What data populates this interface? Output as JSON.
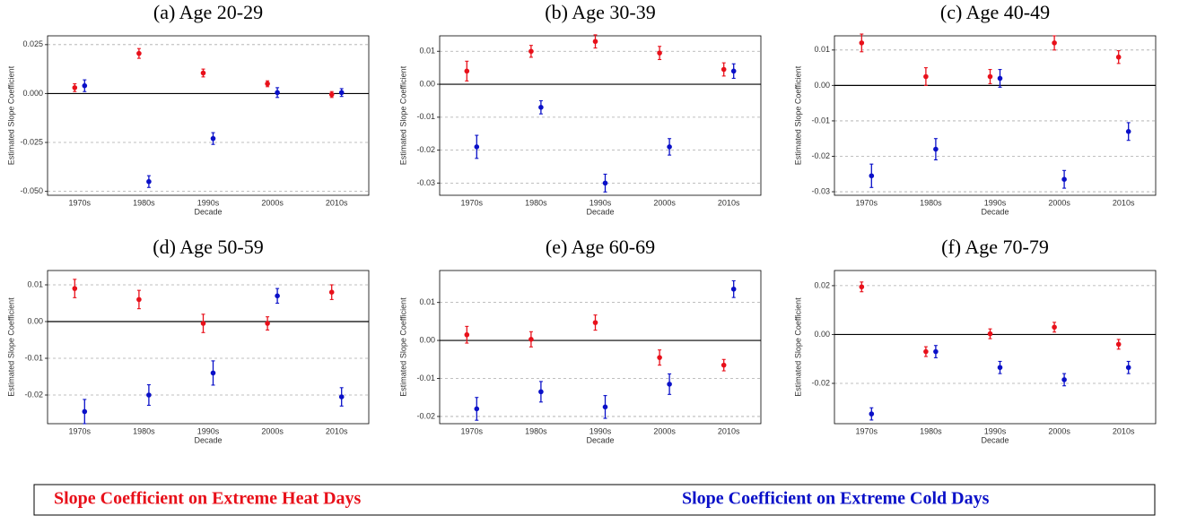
{
  "chart_data": [
    {
      "type": "errorbar",
      "title": "(a) Age 20-29",
      "xlabel": "Decade",
      "ylabel": "Estimated Slope Coefficient",
      "categories": [
        "1970s",
        "1980s",
        "1990s",
        "2000s",
        "2010s"
      ],
      "series": [
        {
          "color": "#e8101a",
          "values": [
            0.003,
            0.0205,
            0.0105,
            0.005,
            -0.0005
          ],
          "errors": [
            0.002,
            0.0025,
            0.002,
            0.0015,
            0.0015
          ]
        },
        {
          "color": "#0a10c8",
          "values": [
            0.004,
            -0.045,
            -0.023,
            0.0005,
            0.0005
          ],
          "errors": [
            0.003,
            0.003,
            0.003,
            0.0025,
            0.002
          ]
        }
      ],
      "ylim": [
        -0.052,
        0.0295
      ],
      "yticks": [
        0.025,
        {
          "value": 0,
          "label": "0.000"
        },
        -0.025,
        {
          "value": -0.05,
          "label": "-0.050"
        }
      ],
      "grid": true
    },
    {
      "type": "errorbar",
      "title": "(b) Age 30-39",
      "xlabel": "Decade",
      "ylabel": "Estimated Slope Coefficient",
      "categories": [
        "1970s",
        "1980s",
        "1990s",
        "2000s",
        "2010s"
      ],
      "series": [
        {
          "color": "#e8101a",
          "values": [
            0.004,
            0.01,
            0.013,
            0.0095,
            0.0045
          ],
          "errors": [
            0.003,
            0.0018,
            0.002,
            0.002,
            0.002
          ]
        },
        {
          "color": "#0a10c8",
          "values": [
            -0.019,
            -0.007,
            -0.03,
            -0.019,
            0.004
          ],
          "errors": [
            0.0035,
            0.002,
            0.0027,
            0.0025,
            0.0022
          ]
        }
      ],
      "ylim": [
        -0.0337,
        0.0147
      ],
      "yticks": [
        0.01,
        {
          "value": 0,
          "label": "0.00"
        },
        -0.01,
        -0.02,
        -0.03
      ],
      "grid": true
    },
    {
      "type": "errorbar",
      "title": "(c) Age 40-49",
      "xlabel": "Decade",
      "ylabel": "Estimated Slope Coefficient",
      "categories": [
        "1970s",
        "1980s",
        "1990s",
        "2000s",
        "2010s"
      ],
      "series": [
        {
          "color": "#e8101a",
          "values": [
            0.012,
            0.0025,
            0.0025,
            0.012,
            0.008
          ],
          "errors": [
            0.0025,
            0.0025,
            0.002,
            0.002,
            0.0018
          ]
        },
        {
          "color": "#0a10c8",
          "values": [
            -0.0255,
            -0.018,
            0.002,
            -0.0265,
            -0.013
          ],
          "errors": [
            0.0033,
            0.003,
            0.0025,
            0.0025,
            0.0025
          ]
        }
      ],
      "ylim": [
        -0.031,
        0.014
      ],
      "yticks": [
        0.01,
        {
          "value": 0,
          "label": "0.00"
        },
        -0.01,
        -0.02,
        -0.03
      ],
      "grid": true
    },
    {
      "type": "errorbar",
      "title": "(d) Age 50-59",
      "xlabel": "Decade",
      "ylabel": "Estimated Slope Coefficient",
      "categories": [
        "1970s",
        "1980s",
        "1990s",
        "2000s",
        "2010s"
      ],
      "series": [
        {
          "color": "#e8101a",
          "values": [
            0.009,
            0.006,
            -0.0005,
            -0.0005,
            0.008
          ],
          "errors": [
            0.0025,
            0.0025,
            0.0025,
            0.0018,
            0.002
          ]
        },
        {
          "color": "#0a10c8",
          "values": [
            -0.0245,
            -0.02,
            -0.014,
            0.007,
            -0.0205
          ],
          "errors": [
            0.0033,
            0.0028,
            0.0033,
            0.002,
            0.0025
          ]
        }
      ],
      "ylim": [
        -0.0278,
        0.0139
      ],
      "yticks": [
        0.01,
        {
          "value": 0,
          "label": "0.00"
        },
        -0.01,
        -0.02
      ],
      "grid": true
    },
    {
      "type": "errorbar",
      "title": "(e) Age 60-69",
      "xlabel": "Decade",
      "ylabel": "Estimated Slope Coefficient",
      "categories": [
        "1970s",
        "1980s",
        "1990s",
        "2000s",
        "2010s"
      ],
      "series": [
        {
          "color": "#e8101a",
          "values": [
            0.0015,
            0.0003,
            0.0047,
            -0.0045,
            -0.0065
          ],
          "errors": [
            0.0022,
            0.002,
            0.002,
            0.002,
            0.0015
          ]
        },
        {
          "color": "#0a10c8",
          "values": [
            -0.018,
            -0.0135,
            -0.0175,
            -0.0115,
            0.0135
          ],
          "errors": [
            0.003,
            0.0027,
            0.003,
            0.0027,
            0.0022
          ]
        }
      ],
      "ylim": [
        -0.0219,
        0.0184
      ],
      "yticks": [
        0.01,
        {
          "value": 0,
          "label": "0.00"
        },
        -0.01,
        -0.02
      ],
      "grid": true
    },
    {
      "type": "errorbar",
      "title": "(f) Age 70-79",
      "xlabel": "Decade",
      "ylabel": "Estimated Slope Coefficient",
      "categories": [
        "1970s",
        "1980s",
        "1990s",
        "2000s",
        "2010s"
      ],
      "series": [
        {
          "color": "#e8101a",
          "values": [
            0.0195,
            -0.007,
            0.0003,
            0.003,
            -0.004
          ],
          "errors": [
            0.002,
            0.002,
            0.002,
            0.002,
            0.002
          ]
        },
        {
          "color": "#0a10c8",
          "values": [
            -0.0325,
            -0.007,
            -0.0135,
            -0.0185,
            -0.0135
          ],
          "errors": [
            0.0025,
            0.0025,
            0.0025,
            0.0025,
            0.0025
          ]
        }
      ],
      "ylim": [
        -0.0365,
        0.0262
      ],
      "yticks": [
        0.02,
        {
          "value": 0,
          "label": "0.00"
        },
        -0.02
      ],
      "grid": true
    }
  ],
  "legend": [
    {
      "name": "Slope Coefficient on Extreme Heat Days",
      "color": "#e8101a"
    },
    {
      "name": "Slope Coefficient on Extreme Cold Days",
      "color": "#0a10c8"
    }
  ]
}
